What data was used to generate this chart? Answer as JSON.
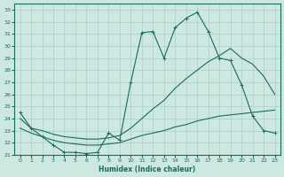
{
  "xlabel": "Humidex (Indice chaleur)",
  "ylabel": "",
  "xlim": [
    -0.5,
    23.5
  ],
  "ylim": [
    21,
    33.5
  ],
  "yticks": [
    21,
    22,
    23,
    24,
    25,
    26,
    27,
    28,
    29,
    30,
    31,
    32,
    33
  ],
  "xticks": [
    0,
    1,
    2,
    3,
    4,
    5,
    6,
    7,
    8,
    9,
    10,
    11,
    12,
    13,
    14,
    15,
    16,
    17,
    18,
    19,
    20,
    21,
    22,
    23
  ],
  "bg_color": "#cce8e0",
  "line_color": "#1a6b5a",
  "grid_color": "#aacfc8",
  "series1_marker": {
    "x": [
      0,
      1,
      2,
      3,
      4,
      5,
      6,
      7,
      8,
      9,
      10,
      11,
      12,
      13,
      14,
      15,
      16,
      17,
      18,
      19,
      20,
      21,
      22,
      23
    ],
    "y": [
      24.5,
      23.2,
      22.5,
      21.8,
      21.2,
      21.2,
      21.1,
      21.2,
      22.8,
      22.2,
      27.0,
      31.1,
      31.2,
      29.0,
      31.5,
      32.3,
      32.8,
      31.2,
      29.0,
      28.8,
      26.8,
      24.2,
      23.0,
      22.8
    ]
  },
  "series2": {
    "x": [
      0,
      1,
      2,
      3,
      4,
      5,
      6,
      7,
      8,
      9,
      10,
      11,
      12,
      13,
      14,
      15,
      16,
      17,
      18,
      19,
      20,
      21,
      22,
      23
    ],
    "y": [
      24.0,
      23.2,
      23.0,
      22.7,
      22.5,
      22.4,
      22.3,
      22.3,
      22.4,
      22.6,
      23.2,
      24.0,
      24.8,
      25.5,
      26.5,
      27.3,
      28.0,
      28.7,
      29.2,
      29.8,
      29.0,
      28.5,
      27.5,
      26.0
    ]
  },
  "series3": {
    "x": [
      0,
      1,
      2,
      3,
      4,
      5,
      6,
      7,
      8,
      9,
      10,
      11,
      12,
      13,
      14,
      15,
      16,
      17,
      18,
      19,
      20,
      21,
      22,
      23
    ],
    "y": [
      23.2,
      22.8,
      22.5,
      22.2,
      22.0,
      21.9,
      21.8,
      21.8,
      21.9,
      22.0,
      22.3,
      22.6,
      22.8,
      23.0,
      23.3,
      23.5,
      23.8,
      24.0,
      24.2,
      24.3,
      24.4,
      24.5,
      24.6,
      24.7
    ]
  }
}
